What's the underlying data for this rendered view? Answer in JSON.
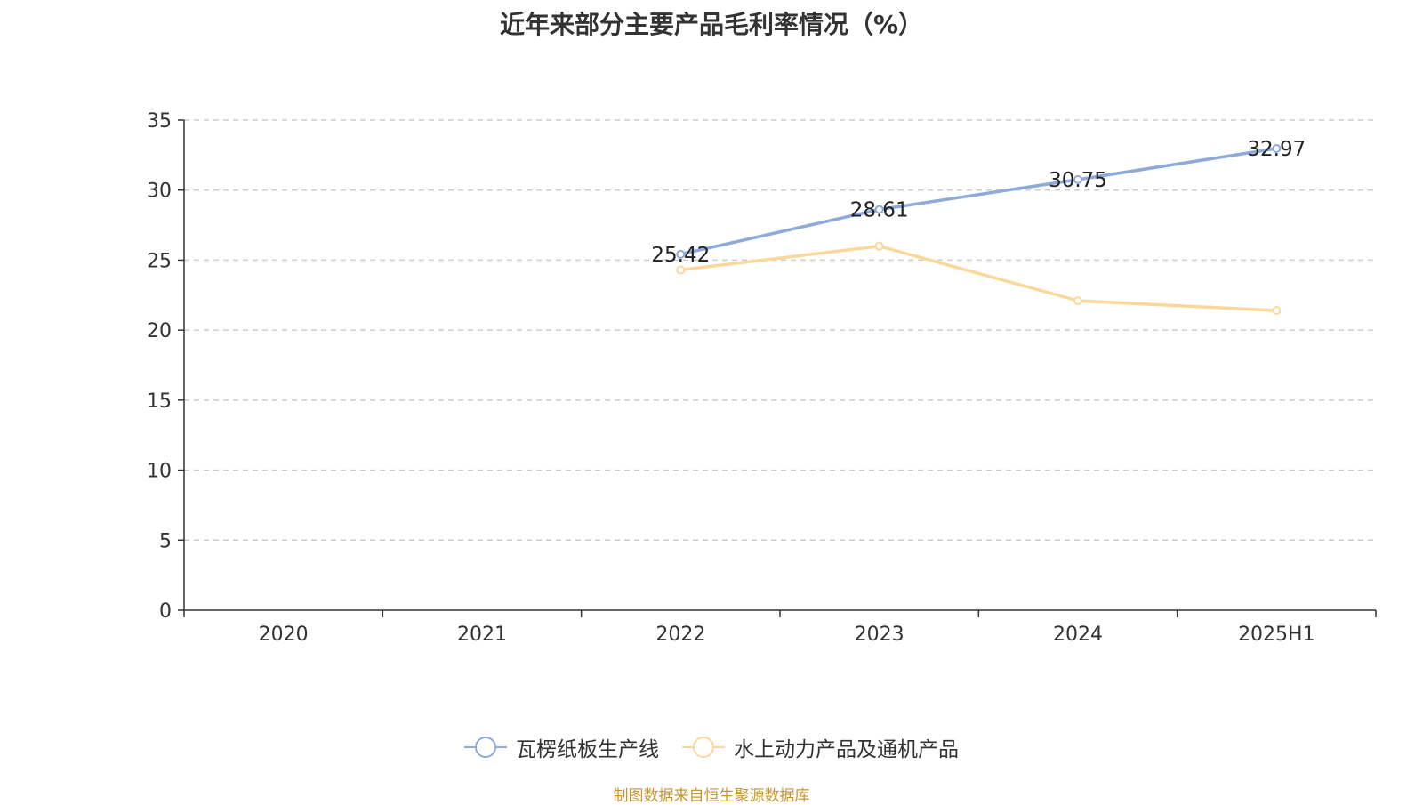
{
  "chart_data": {
    "type": "line",
    "title": "近年来部分主要产品毛利率情况（%）",
    "categories": [
      "2020",
      "2021",
      "2022",
      "2023",
      "2024",
      "2025H1"
    ],
    "ylim": [
      0,
      35
    ],
    "yticks": [
      0,
      5,
      10,
      15,
      20,
      25,
      30,
      35
    ],
    "grid": true,
    "legend_position": "bottom",
    "series": [
      {
        "name": "瓦楞纸板生产线",
        "color": "#8eaad8",
        "values": [
          null,
          null,
          25.42,
          28.61,
          30.75,
          32.97
        ],
        "labels": [
          "",
          "",
          "25.42",
          "28.61",
          "30.75",
          "32.97"
        ]
      },
      {
        "name": "水上动力产品及通机产品",
        "color": "#fbd89a",
        "values": [
          null,
          null,
          24.3,
          26.0,
          22.1,
          21.4
        ],
        "labels": [
          "",
          "",
          "",
          "",
          "",
          ""
        ]
      }
    ]
  },
  "source": "制图数据来自恒生聚源数据库"
}
